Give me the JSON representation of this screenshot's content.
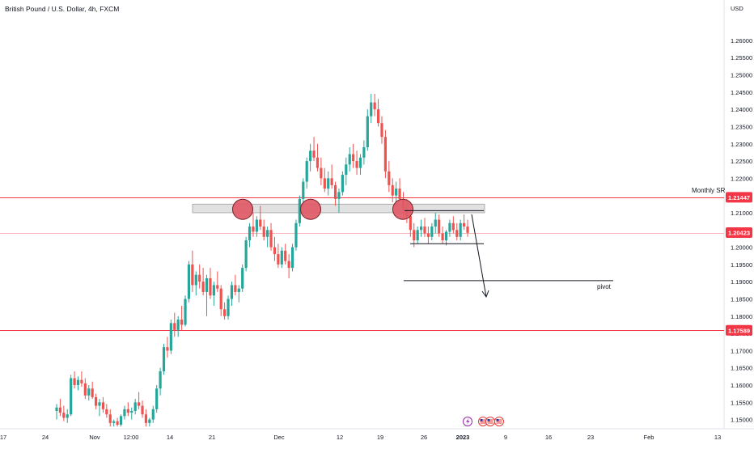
{
  "header": {
    "symbol_name": "British Pound / U.S. Dollar",
    "interval": "4h",
    "exchange": "FXCM"
  },
  "price_axis": {
    "currency": "USD"
  },
  "chart_data": {
    "type": "candlestick",
    "y_ticks": [
      "1.26000",
      "1.25500",
      "1.25000",
      "1.24500",
      "1.24000",
      "1.23500",
      "1.23000",
      "1.22500",
      "1.22000",
      "1.21500",
      "1.21000",
      "1.20500",
      "1.20000",
      "1.19500",
      "1.19000",
      "1.18500",
      "1.18000",
      "1.17500",
      "1.17000",
      "1.16500",
      "1.16000",
      "1.15500",
      "1.15000"
    ],
    "ylim": [
      1.1485,
      1.2628
    ],
    "x_ticks": [
      "17",
      "24",
      "Nov",
      "12:00",
      "14",
      "21",
      "Dec",
      "12",
      "19",
      "26",
      "2023",
      "9",
      "16",
      "23",
      "Feb",
      "13"
    ],
    "price_lines": [
      {
        "value": 1.21447,
        "label": "1.21447",
        "style": "solid"
      },
      {
        "value": 1.20423,
        "label": "1.20423",
        "style": "light"
      },
      {
        "value": 1.17589,
        "label": "1.17589",
        "style": "solid"
      }
    ],
    "annotations": {
      "monthly_sr": "Monthly SR",
      "pivot": "pivot",
      "zone_range": [
        1.21,
        1.2125
      ],
      "pivot_level": 1.1903,
      "range_top": 1.2106,
      "range_bottom": 1.201
    },
    "colors": {
      "up": "#26a69a",
      "down": "#ef5350",
      "line": "#f23645",
      "circle": "#e05a66"
    },
    "candles": [
      [
        1.1525,
        1.1545,
        1.15,
        1.1535
      ],
      [
        1.1535,
        1.156,
        1.151,
        1.152
      ],
      [
        1.152,
        1.154,
        1.1495,
        1.1505
      ],
      [
        1.1505,
        1.153,
        1.149,
        1.1515
      ],
      [
        1.1515,
        1.163,
        1.151,
        1.162
      ],
      [
        1.162,
        1.164,
        1.159,
        1.16
      ],
      [
        1.16,
        1.1625,
        1.1585,
        1.1615
      ],
      [
        1.1615,
        1.164,
        1.1595,
        1.1605
      ],
      [
        1.1605,
        1.162,
        1.156,
        1.157
      ],
      [
        1.157,
        1.16,
        1.1555,
        1.159
      ],
      [
        1.159,
        1.161,
        1.156,
        1.1565
      ],
      [
        1.1565,
        1.1575,
        1.153,
        1.154
      ],
      [
        1.154,
        1.156,
        1.151,
        1.155
      ],
      [
        1.155,
        1.1565,
        1.152,
        1.153
      ],
      [
        1.153,
        1.1545,
        1.1505,
        1.1515
      ],
      [
        1.1515,
        1.153,
        1.148,
        1.149
      ],
      [
        1.149,
        1.15,
        1.148,
        1.1495
      ],
      [
        1.1495,
        1.1505,
        1.148,
        1.1485
      ],
      [
        1.1485,
        1.1515,
        1.148,
        1.151
      ],
      [
        1.151,
        1.154,
        1.15,
        1.153
      ],
      [
        1.153,
        1.155,
        1.151,
        1.152
      ],
      [
        1.152,
        1.1535,
        1.15,
        1.1525
      ],
      [
        1.1525,
        1.156,
        1.1515,
        1.155
      ],
      [
        1.155,
        1.158,
        1.153,
        1.154
      ],
      [
        1.154,
        1.1555,
        1.1505,
        1.1515
      ],
      [
        1.1515,
        1.153,
        1.148,
        1.149
      ],
      [
        1.149,
        1.1505,
        1.148,
        1.15
      ],
      [
        1.15,
        1.154,
        1.149,
        1.153
      ],
      [
        1.153,
        1.16,
        1.152,
        1.159
      ],
      [
        1.159,
        1.165,
        1.157,
        1.164
      ],
      [
        1.164,
        1.172,
        1.163,
        1.171
      ],
      [
        1.171,
        1.174,
        1.168,
        1.17
      ],
      [
        1.17,
        1.179,
        1.169,
        1.178
      ],
      [
        1.178,
        1.181,
        1.174,
        1.176
      ],
      [
        1.176,
        1.18,
        1.174,
        1.179
      ],
      [
        1.179,
        1.183,
        1.176,
        1.1775
      ],
      [
        1.1775,
        1.186,
        1.177,
        1.185
      ],
      [
        1.185,
        1.196,
        1.184,
        1.195
      ],
      [
        1.195,
        1.199,
        1.187,
        1.189
      ],
      [
        1.189,
        1.193,
        1.186,
        1.192
      ],
      [
        1.192,
        1.195,
        1.188,
        1.19
      ],
      [
        1.19,
        1.194,
        1.186,
        1.187
      ],
      [
        1.187,
        1.192,
        1.18,
        1.191
      ],
      [
        1.191,
        1.194,
        1.185,
        1.186
      ],
      [
        1.186,
        1.19,
        1.183,
        1.189
      ],
      [
        1.189,
        1.193,
        1.187,
        1.188
      ],
      [
        1.188,
        1.189,
        1.18,
        1.182
      ],
      [
        1.182,
        1.184,
        1.179,
        1.18
      ],
      [
        1.18,
        1.186,
        1.179,
        1.185
      ],
      [
        1.185,
        1.19,
        1.183,
        1.189
      ],
      [
        1.189,
        1.192,
        1.186,
        1.187
      ],
      [
        1.187,
        1.189,
        1.184,
        1.188
      ],
      [
        1.188,
        1.195,
        1.187,
        1.194
      ],
      [
        1.194,
        1.203,
        1.193,
        1.202
      ],
      [
        1.202,
        1.207,
        1.2,
        1.206
      ],
      [
        1.206,
        1.21,
        1.203,
        1.2045
      ],
      [
        1.2045,
        1.209,
        1.203,
        1.208
      ],
      [
        1.208,
        1.212,
        1.205,
        1.206
      ],
      [
        1.206,
        1.208,
        1.202,
        1.203
      ],
      [
        1.203,
        1.206,
        1.2,
        1.205
      ],
      [
        1.205,
        1.207,
        1.199,
        1.2
      ],
      [
        1.2,
        1.203,
        1.196,
        1.198
      ],
      [
        1.198,
        1.201,
        1.194,
        1.195
      ],
      [
        1.195,
        1.2,
        1.194,
        1.199
      ],
      [
        1.199,
        1.201,
        1.195,
        1.196
      ],
      [
        1.196,
        1.198,
        1.191,
        1.194
      ],
      [
        1.194,
        1.201,
        1.193,
        1.2
      ],
      [
        1.2,
        1.208,
        1.199,
        1.207
      ],
      [
        1.207,
        1.215,
        1.206,
        1.214
      ],
      [
        1.214,
        1.22,
        1.212,
        1.219
      ],
      [
        1.219,
        1.226,
        1.217,
        1.225
      ],
      [
        1.225,
        1.23,
        1.222,
        1.228
      ],
      [
        1.228,
        1.232,
        1.225,
        1.226
      ],
      [
        1.226,
        1.23,
        1.222,
        1.223
      ],
      [
        1.223,
        1.226,
        1.218,
        1.22
      ],
      [
        1.22,
        1.223,
        1.216,
        1.217
      ],
      [
        1.217,
        1.222,
        1.215,
        1.22
      ],
      [
        1.22,
        1.224,
        1.217,
        1.218
      ],
      [
        1.218,
        1.219,
        1.212,
        1.214
      ],
      [
        1.214,
        1.217,
        1.21,
        1.216
      ],
      [
        1.216,
        1.222,
        1.215,
        1.221
      ],
      [
        1.221,
        1.226,
        1.218,
        1.224
      ],
      [
        1.224,
        1.229,
        1.222,
        1.227
      ],
      [
        1.227,
        1.23,
        1.223,
        1.225
      ],
      [
        1.225,
        1.228,
        1.221,
        1.223
      ],
      [
        1.223,
        1.227,
        1.221,
        1.226
      ],
      [
        1.226,
        1.231,
        1.224,
        1.229
      ],
      [
        1.229,
        1.24,
        1.228,
        1.238
      ],
      [
        1.238,
        1.2445,
        1.236,
        1.242
      ],
      [
        1.242,
        1.2445,
        1.238,
        1.24
      ],
      [
        1.24,
        1.243,
        1.235,
        1.236
      ],
      [
        1.236,
        1.238,
        1.23,
        1.232
      ],
      [
        1.232,
        1.234,
        1.22,
        1.222
      ],
      [
        1.222,
        1.225,
        1.216,
        1.218
      ],
      [
        1.218,
        1.22,
        1.213,
        1.215
      ],
      [
        1.215,
        1.219,
        1.212,
        1.217
      ],
      [
        1.217,
        1.22,
        1.213,
        1.214
      ],
      [
        1.214,
        1.216,
        1.209,
        1.211
      ],
      [
        1.211,
        1.214,
        1.207,
        1.209
      ],
      [
        1.209,
        1.211,
        1.203,
        1.205
      ],
      [
        1.205,
        1.207,
        1.2,
        1.202
      ],
      [
        1.202,
        1.206,
        1.201,
        1.205
      ],
      [
        1.205,
        1.208,
        1.203,
        1.206
      ],
      [
        1.206,
        1.2085,
        1.203,
        1.204
      ],
      [
        1.204,
        1.206,
        1.201,
        1.203
      ],
      [
        1.203,
        1.207,
        1.202,
        1.206
      ],
      [
        1.206,
        1.21,
        1.204,
        1.208
      ],
      [
        1.208,
        1.2095,
        1.203,
        1.204
      ],
      [
        1.204,
        1.206,
        1.201,
        1.202
      ],
      [
        1.202,
        1.205,
        1.2005,
        1.2045
      ],
      [
        1.2045,
        1.208,
        1.203,
        1.207
      ],
      [
        1.207,
        1.209,
        1.204,
        1.205
      ],
      [
        1.205,
        1.207,
        1.202,
        1.203
      ],
      [
        1.203,
        1.208,
        1.202,
        1.207
      ],
      [
        1.207,
        1.2095,
        1.205,
        1.206
      ],
      [
        1.206,
        1.208,
        1.203,
        1.2042
      ]
    ]
  }
}
